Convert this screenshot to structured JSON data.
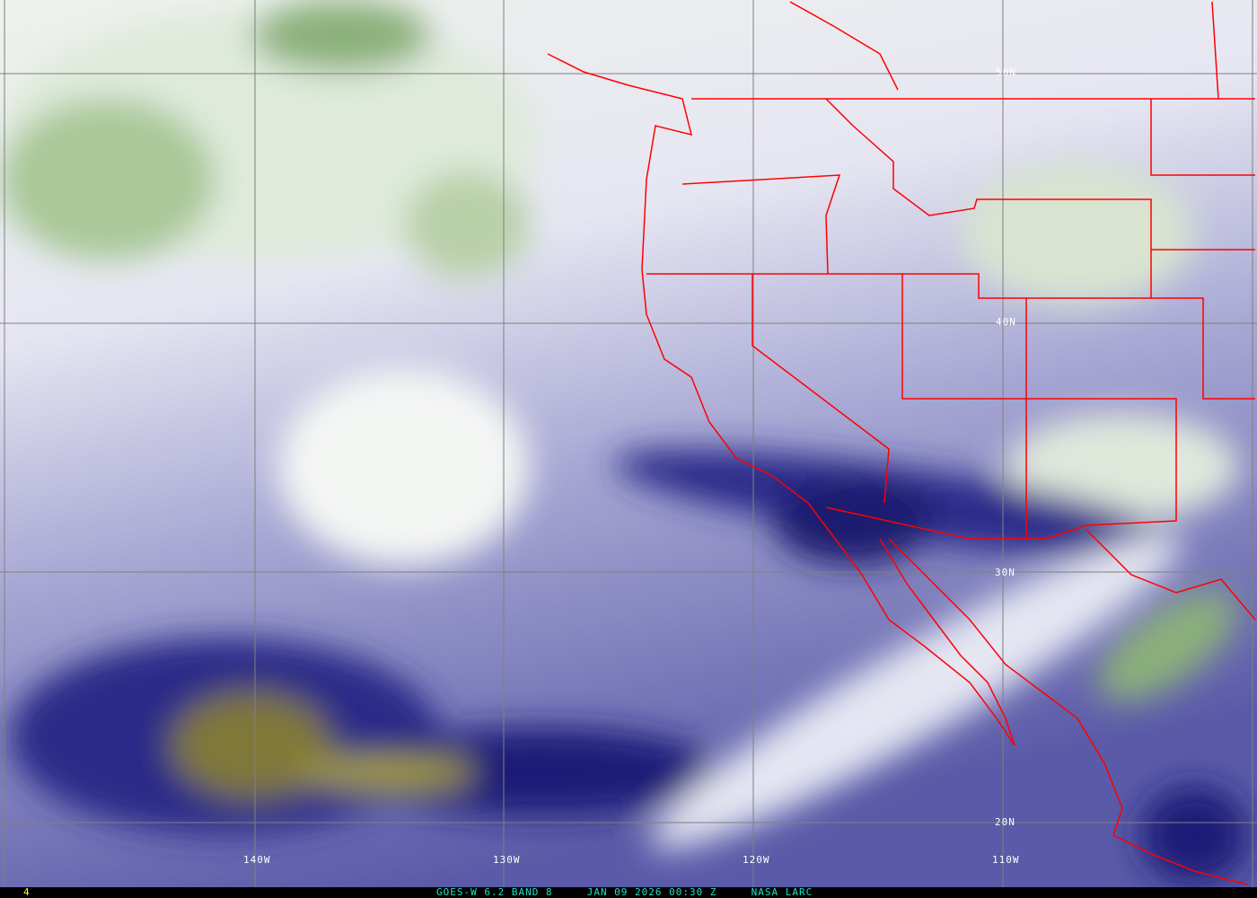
{
  "image": {
    "satellite": "GOES-W",
    "caption": "GOES-W 6.2 BAND 8     JAN 09 2026 00:30 Z     NASA LARC",
    "frame_number": "4"
  },
  "grid": {
    "latitude_labels": [
      "50N",
      "40N",
      "30N",
      "20N"
    ],
    "longitude_labels": [
      "140W",
      "130W",
      "120W",
      "110W"
    ]
  },
  "colors": {
    "boundaries": "#ff0000",
    "grid": "#808080",
    "dry": "#000080",
    "moist": "#f4f6f4",
    "cloud": "#4a8a3a",
    "very_dry": "#b0a030",
    "caption": "#20e0c0",
    "frame": "#ffff00"
  }
}
